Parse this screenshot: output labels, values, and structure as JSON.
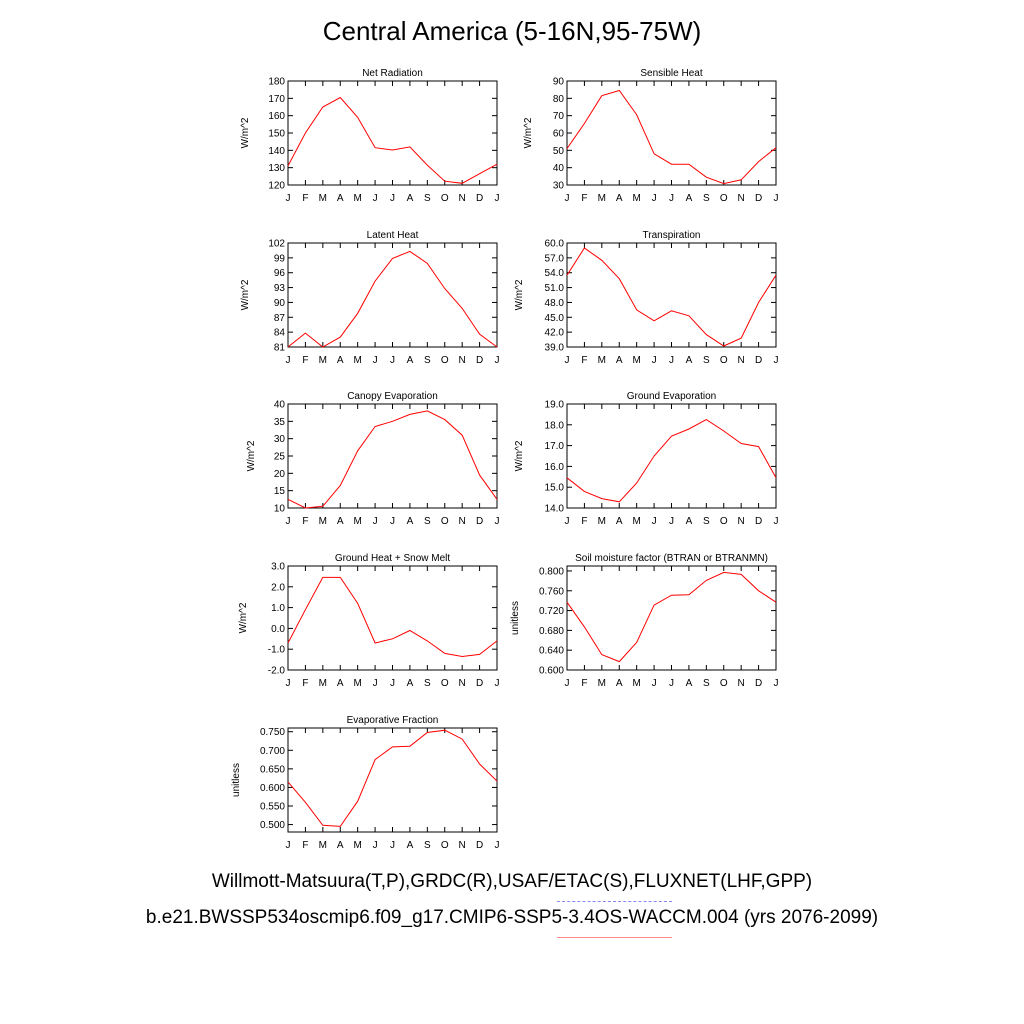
{
  "page": {
    "title": "Central America (5-16N,95-75W)",
    "legend_obs": "Willmott-Matsuura(T,P),GRDC(R),USAF/ETAC(S),FLUXNET(LHF,GPP)",
    "legend_model": "b.e21.BWSSP534oscmip6.f09_g17.CMIP6-SSP5-3.4OS-WACCM.004 (yrs 2076-2099)",
    "obs_color": "#8888ff",
    "model_color": "#ff8888",
    "series_color": "#ff0000"
  },
  "chart_data": [
    {
      "type": "line",
      "title": "Net Radiation",
      "ylabel": "W/m^2",
      "x": [
        "J",
        "F",
        "M",
        "A",
        "M",
        "J",
        "J",
        "A",
        "S",
        "O",
        "N",
        "D",
        "J"
      ],
      "series": [
        {
          "values": [
            131,
            150,
            165,
            170.5,
            159,
            141.5,
            140.2,
            142,
            131.5,
            122.2,
            121,
            126.5,
            132
          ]
        }
      ],
      "ylim": [
        120,
        180
      ],
      "yticks": [
        "120",
        "130",
        "140",
        "150",
        "160",
        "170",
        "180"
      ],
      "ytick_values": [
        120,
        130,
        140,
        150,
        160,
        170,
        180
      ]
    },
    {
      "type": "line",
      "title": "Sensible Heat",
      "ylabel": "W/m^2",
      "x": [
        "J",
        "F",
        "M",
        "A",
        "M",
        "J",
        "J",
        "A",
        "S",
        "O",
        "N",
        "D",
        "J"
      ],
      "series": [
        {
          "values": [
            51,
            65.5,
            81.5,
            84.5,
            70.5,
            48,
            42,
            42,
            34.5,
            30.8,
            33,
            43.5,
            51.5
          ]
        }
      ],
      "ylim": [
        30,
        90
      ],
      "yticks": [
        "30",
        "40",
        "50",
        "60",
        "70",
        "80",
        "90"
      ],
      "ytick_values": [
        30,
        40,
        50,
        60,
        70,
        80,
        90
      ]
    },
    {
      "type": "line",
      "title": "Latent Heat",
      "ylabel": "W/m^2",
      "x": [
        "J",
        "F",
        "M",
        "A",
        "M",
        "J",
        "J",
        "A",
        "S",
        "O",
        "N",
        "D",
        "J"
      ],
      "series": [
        {
          "values": [
            81,
            83.8,
            81,
            83,
            87.8,
            94.3,
            98.9,
            100.3,
            97.9,
            92.8,
            88.8,
            83.6,
            81
          ]
        }
      ],
      "ylim": [
        81,
        102
      ],
      "yticks": [
        "81",
        "84",
        "87",
        "90",
        "93",
        "96",
        "99",
        "102"
      ],
      "ytick_values": [
        81,
        84,
        87,
        90,
        93,
        96,
        99,
        102
      ]
    },
    {
      "type": "line",
      "title": "Transpiration",
      "ylabel": "W/m^2",
      "x": [
        "J",
        "F",
        "M",
        "A",
        "M",
        "J",
        "J",
        "A",
        "S",
        "O",
        "N",
        "D",
        "J"
      ],
      "series": [
        {
          "values": [
            53.5,
            59,
            56.5,
            52.8,
            46.5,
            44.3,
            46.3,
            45.3,
            41.5,
            39.2,
            40.8,
            48,
            53.5
          ]
        }
      ],
      "ylim": [
        39,
        60
      ],
      "yticks": [
        "39.0",
        "42.0",
        "45.0",
        "48.0",
        "51.0",
        "54.0",
        "57.0",
        "60.0"
      ],
      "ytick_values": [
        39,
        42,
        45,
        48,
        51,
        54,
        57,
        60
      ]
    },
    {
      "type": "line",
      "title": "Canopy Evaporation",
      "ylabel": "W/m^2",
      "x": [
        "J",
        "F",
        "M",
        "A",
        "M",
        "J",
        "J",
        "A",
        "S",
        "O",
        "N",
        "D",
        "J"
      ],
      "series": [
        {
          "values": [
            12.5,
            10,
            10.5,
            16.5,
            26.5,
            33.5,
            35,
            37,
            38,
            35.5,
            31,
            19.5,
            12.5
          ]
        }
      ],
      "ylim": [
        10,
        40
      ],
      "yticks": [
        "10",
        "15",
        "20",
        "25",
        "30",
        "35",
        "40"
      ],
      "ytick_values": [
        10,
        15,
        20,
        25,
        30,
        35,
        40
      ]
    },
    {
      "type": "line",
      "title": "Ground Evaporation",
      "ylabel": "W/m^2",
      "x": [
        "J",
        "F",
        "M",
        "A",
        "M",
        "J",
        "J",
        "A",
        "S",
        "O",
        "N",
        "D",
        "J"
      ],
      "series": [
        {
          "values": [
            15.45,
            14.8,
            14.45,
            14.3,
            15.2,
            16.5,
            17.45,
            17.8,
            18.25,
            17.7,
            17.1,
            16.95,
            15.45
          ]
        }
      ],
      "ylim": [
        14,
        19
      ],
      "yticks": [
        "14.0",
        "15.0",
        "16.0",
        "17.0",
        "18.0",
        "19.0"
      ],
      "ytick_values": [
        14,
        15,
        16,
        17,
        18,
        19
      ]
    },
    {
      "type": "line",
      "title": "Ground Heat + Snow Melt",
      "ylabel": "W/m^2",
      "x": [
        "J",
        "F",
        "M",
        "A",
        "M",
        "J",
        "J",
        "A",
        "S",
        "O",
        "N",
        "D",
        "J"
      ],
      "series": [
        {
          "values": [
            -0.7,
            0.9,
            2.45,
            2.45,
            1.2,
            -0.7,
            -0.5,
            -0.1,
            -0.6,
            -1.2,
            -1.35,
            -1.25,
            -0.6
          ]
        }
      ],
      "ylim": [
        -2,
        3
      ],
      "yticks": [
        "-2.0",
        "-1.0",
        "0.0",
        "1.0",
        "2.0",
        "3.0"
      ],
      "ytick_values": [
        -2,
        -1,
        0,
        1,
        2,
        3
      ]
    },
    {
      "type": "line",
      "title": "Soil moisture factor (BTRAN or BTRANMN)",
      "ylabel": "unitless",
      "x": [
        "J",
        "F",
        "M",
        "A",
        "M",
        "J",
        "J",
        "A",
        "S",
        "O",
        "N",
        "D",
        "J"
      ],
      "series": [
        {
          "values": [
            0.737,
            0.687,
            0.631,
            0.617,
            0.656,
            0.731,
            0.751,
            0.752,
            0.781,
            0.797,
            0.793,
            0.76,
            0.737
          ]
        }
      ],
      "ylim": [
        0.6,
        0.81
      ],
      "yticks": [
        "0.600",
        "0.640",
        "0.680",
        "0.720",
        "0.760",
        "0.800"
      ],
      "ytick_values": [
        0.6,
        0.64,
        0.68,
        0.72,
        0.76,
        0.8
      ]
    },
    {
      "type": "line",
      "title": "Evaporative Fraction",
      "ylabel": "unitless",
      "x": [
        "J",
        "F",
        "M",
        "A",
        "M",
        "J",
        "J",
        "A",
        "S",
        "O",
        "N",
        "D",
        "J"
      ],
      "series": [
        {
          "values": [
            0.615,
            0.56,
            0.498,
            0.495,
            0.563,
            0.675,
            0.709,
            0.711,
            0.748,
            0.754,
            0.73,
            0.663,
            0.617
          ]
        }
      ],
      "ylim": [
        0.48,
        0.76
      ],
      "yticks": [
        "0.500",
        "0.550",
        "0.600",
        "0.650",
        "0.700",
        "0.750"
      ],
      "ytick_values": [
        0.5,
        0.55,
        0.6,
        0.65,
        0.7,
        0.75
      ]
    }
  ]
}
